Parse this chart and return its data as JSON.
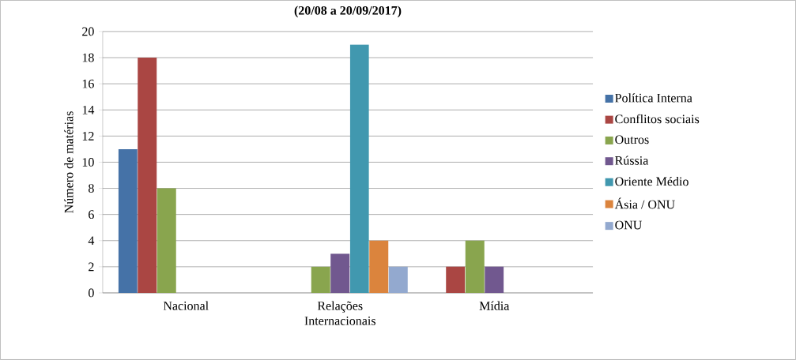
{
  "chart_data": {
    "type": "bar",
    "title": "(20/08 a 20/09/2017)",
    "ylabel": "Número de matérias",
    "categories": [
      "Nacional",
      "Relações Internacionais",
      "Mídia"
    ],
    "series": [
      {
        "name": "Política Interna",
        "color": "#4572a7",
        "values": [
          11,
          null,
          null
        ]
      },
      {
        "name": "Conflitos sociais",
        "color": "#aa4643",
        "values": [
          18,
          null,
          2
        ]
      },
      {
        "name": "Outros",
        "color": "#89a54e",
        "values": [
          8,
          2,
          4
        ]
      },
      {
        "name": "Rússia",
        "color": "#71588f",
        "values": [
          null,
          3,
          2
        ]
      },
      {
        "name": "Oriente Médio",
        "color": "#4198af",
        "values": [
          null,
          19,
          null
        ]
      },
      {
        "name": "Ásia / ONU",
        "color": "#db843d",
        "values": [
          null,
          4,
          null
        ]
      },
      {
        "name": "ONU",
        "color": "#93a9cf",
        "values": [
          null,
          2,
          null
        ]
      }
    ],
    "ylim": [
      0,
      20
    ],
    "yticks": [
      0,
      2,
      4,
      6,
      8,
      10,
      12,
      14,
      16,
      18,
      20
    ],
    "grid": "y",
    "legend": "right"
  }
}
